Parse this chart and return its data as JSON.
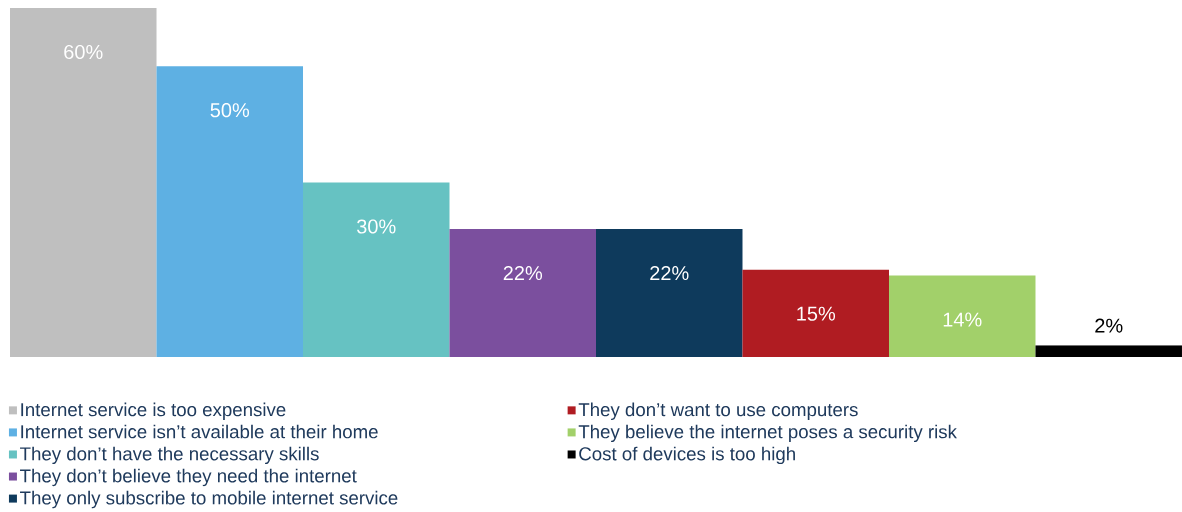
{
  "chart_data": {
    "type": "bar",
    "categories": [
      null,
      null,
      null,
      null,
      null,
      null,
      null,
      null
    ],
    "series": [
      {
        "name": "Internet service is too expensive",
        "color": "#bfbfbf",
        "values": [
          60,
          null,
          null,
          null,
          null,
          null,
          null,
          null
        ],
        "value_labels": [
          "60%",
          null,
          null,
          null,
          null,
          null,
          null,
          null
        ]
      },
      {
        "name": "Internet service isn’t available at their home",
        "color": "#5eb0e3",
        "values": [
          null,
          50,
          null,
          null,
          null,
          null,
          null,
          null
        ],
        "value_labels": [
          null,
          "50%",
          null,
          null,
          null,
          null,
          null,
          null
        ]
      },
      {
        "name": "They don’t have the necessary skills",
        "color": "#66c2c2",
        "values": [
          null,
          null,
          30,
          null,
          null,
          null,
          null,
          null
        ],
        "value_labels": [
          null,
          null,
          "30%",
          null,
          null,
          null,
          null,
          null
        ]
      },
      {
        "name": "They don’t believe they need the internet",
        "color": "#7b4f9e",
        "values": [
          null,
          null,
          null,
          22,
          null,
          null,
          null,
          null
        ],
        "value_labels": [
          null,
          null,
          null,
          "22%",
          null,
          null,
          null,
          null
        ]
      },
      {
        "name": "They only subscribe to mobile internet service",
        "color": "#0e3a5c",
        "values": [
          null,
          null,
          null,
          null,
          22,
          null,
          null,
          null
        ],
        "value_labels": [
          null,
          null,
          null,
          null,
          "22%",
          null,
          null,
          null
        ]
      },
      {
        "name": "They don’t want to use computers",
        "color": "#b01c22",
        "values": [
          null,
          null,
          null,
          null,
          null,
          15,
          null,
          null
        ],
        "value_labels": [
          null,
          null,
          null,
          null,
          null,
          "15%",
          null,
          null
        ]
      },
      {
        "name": "They believe the internet poses a security risk",
        "color": "#a2d06a",
        "values": [
          null,
          null,
          null,
          null,
          null,
          null,
          14,
          null
        ],
        "value_labels": [
          null,
          null,
          null,
          null,
          null,
          null,
          "14%",
          null
        ]
      },
      {
        "name": "Cost of devices is too high",
        "color": "#000000",
        "values": [
          null,
          null,
          null,
          null,
          null,
          null,
          null,
          2
        ],
        "value_labels": [
          null,
          null,
          null,
          null,
          null,
          null,
          null,
          "2%"
        ]
      }
    ],
    "stacked": true,
    "legend": "bottom"
  }
}
